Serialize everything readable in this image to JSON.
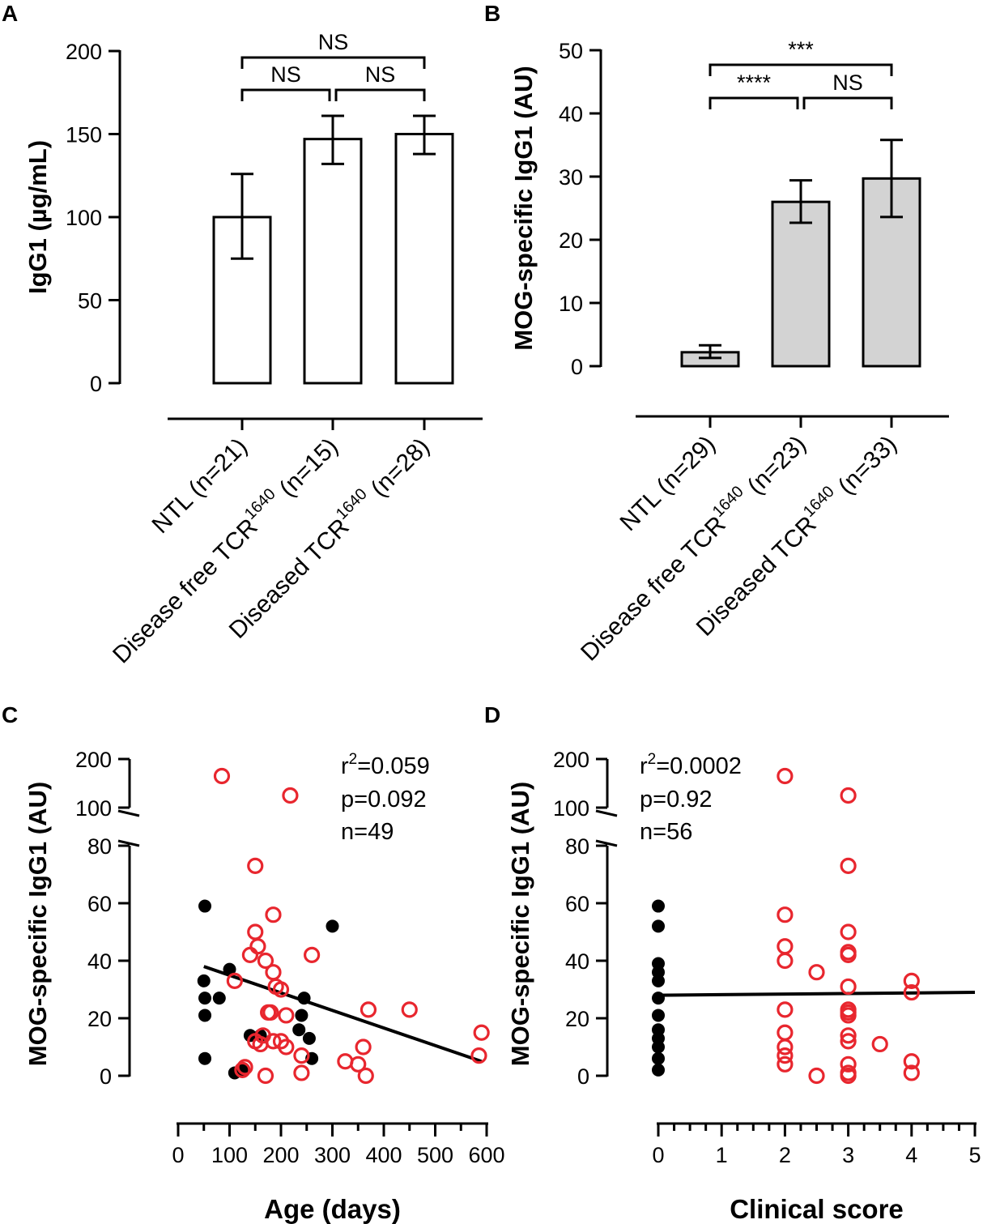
{
  "chart_data": [
    {
      "panel": "A",
      "type": "bar",
      "ylabel": "IgG1 (µg/mL)",
      "ylim": [
        0,
        200
      ],
      "yticks": [
        "0",
        "50",
        "100",
        "150",
        "200"
      ],
      "bar_fill": "#ffffff",
      "categories": [
        {
          "pre": "NTL (n=21)",
          "sup": "",
          "post": ""
        },
        {
          "pre": "Disease free TCR",
          "sup": "1640",
          "post": " (n=15)"
        },
        {
          "pre": "Diseased TCR",
          "sup": "1640",
          "post": " (n=28)"
        }
      ],
      "values": [
        100,
        147,
        150
      ],
      "errors": [
        [
          75,
          126
        ],
        [
          132,
          161
        ],
        [
          138,
          161
        ]
      ],
      "comparisons": [
        {
          "from": 0,
          "to": 1,
          "label": "NS",
          "level": 1
        },
        {
          "from": 1,
          "to": 2,
          "label": "NS",
          "level": 1
        },
        {
          "from": 0,
          "to": 2,
          "label": "NS",
          "level": 2
        }
      ]
    },
    {
      "panel": "B",
      "type": "bar",
      "ylabel": "MOG-specific IgG1 (AU)",
      "ylim": [
        0,
        50
      ],
      "yticks": [
        "0",
        "10",
        "20",
        "30",
        "40",
        "50"
      ],
      "bar_fill": "#d3d3d3",
      "categories": [
        {
          "pre": "NTL (n=29)",
          "sup": "",
          "post": ""
        },
        {
          "pre": "Disease free TCR",
          "sup": "1640",
          "post": " (n=23)"
        },
        {
          "pre": "Diseased TCR",
          "sup": "1640",
          "post": " (n=33)"
        }
      ],
      "values": [
        2.2,
        26,
        29.7
      ],
      "errors": [
        [
          1.3,
          3.3
        ],
        [
          22.7,
          29.4
        ],
        [
          23.6,
          35.8
        ]
      ],
      "comparisons": [
        {
          "from": 0,
          "to": 1,
          "label": "****",
          "level": 1
        },
        {
          "from": 1,
          "to": 2,
          "label": "NS",
          "level": 1
        },
        {
          "from": 0,
          "to": 2,
          "label": "***",
          "level": 2
        }
      ]
    },
    {
      "panel": "C",
      "type": "scatter",
      "xlabel": "Age (days)",
      "ylabel": "MOG-specific IgG1 (AU)",
      "xlim": [
        0,
        600
      ],
      "xticks": [
        "0",
        "100",
        "200",
        "300",
        "400",
        "500",
        "600"
      ],
      "ylim_lower": [
        0,
        80
      ],
      "ylim_upper": [
        100,
        200
      ],
      "yticks_lower": [
        "0",
        "20",
        "40",
        "60",
        "80"
      ],
      "yticks_upper": [
        "100",
        "200"
      ],
      "stats": {
        "r2_prefix": "r",
        "r2_sup": "2",
        "r2_value": "=0.059",
        "p": "p=0.092",
        "n": "n=49"
      },
      "regression": {
        "x": [
          50,
          590
        ],
        "y": [
          38,
          5
        ]
      },
      "series": [
        {
          "name": "black filled",
          "marker": "filled",
          "color": "#000000",
          "points": [
            [
              52,
              59
            ],
            [
              50,
              33
            ],
            [
              52,
              27
            ],
            [
              52,
              21
            ],
            [
              52,
              6
            ],
            [
              100,
              37
            ],
            [
              80,
              27
            ],
            [
              140,
              14
            ],
            [
              160,
              14
            ],
            [
              125,
              2
            ],
            [
              110,
              1
            ],
            [
              300,
              52
            ],
            [
              245,
              27
            ],
            [
              240,
              21
            ],
            [
              235,
              16
            ],
            [
              255,
              13
            ],
            [
              260,
              6
            ]
          ]
        },
        {
          "name": "red open",
          "marker": "open",
          "color": "#e8262e",
          "points": [
            [
              85,
              165
            ],
            [
              218,
              125
            ],
            [
              150,
              73
            ],
            [
              150,
              50
            ],
            [
              155,
              45
            ],
            [
              140,
              42
            ],
            [
              185,
              56
            ],
            [
              170,
              40
            ],
            [
              185,
              36
            ],
            [
              190,
              31
            ],
            [
              200,
              30
            ],
            [
              260,
              42
            ],
            [
              110,
              33
            ],
            [
              180,
              22
            ],
            [
              175,
              22
            ],
            [
              210,
              21
            ],
            [
              165,
              14
            ],
            [
              150,
              12
            ],
            [
              160,
              11
            ],
            [
              185,
              12
            ],
            [
              200,
              12
            ],
            [
              210,
              10
            ],
            [
              130,
              3
            ],
            [
              125,
              2
            ],
            [
              170,
              0
            ],
            [
              240,
              7
            ],
            [
              240,
              1
            ],
            [
              325,
              5
            ],
            [
              350,
              4
            ],
            [
              360,
              10
            ],
            [
              370,
              23
            ],
            [
              365,
              0
            ],
            [
              450,
              23
            ],
            [
              590,
              15
            ],
            [
              585,
              7
            ]
          ]
        }
      ]
    },
    {
      "panel": "D",
      "type": "scatter",
      "xlabel": "Clinical score",
      "ylabel": "MOG-specific IgG1 (AU)",
      "xlim": [
        0,
        5
      ],
      "xticks": [
        "0",
        "1",
        "2",
        "3",
        "4",
        "5"
      ],
      "ylim_lower": [
        0,
        80
      ],
      "ylim_upper": [
        100,
        200
      ],
      "yticks_lower": [
        "0",
        "20",
        "40",
        "60",
        "80"
      ],
      "yticks_upper": [
        "100",
        "200"
      ],
      "stats": {
        "r2_prefix": "r",
        "r2_sup": "2",
        "r2_value": "=0.0002",
        "p": "p=0.92",
        "n": "n=56"
      },
      "regression": {
        "x": [
          0,
          5
        ],
        "y": [
          28,
          29
        ]
      },
      "series": [
        {
          "name": "black filled",
          "marker": "filled",
          "color": "#000000",
          "points": [
            [
              0,
              59
            ],
            [
              0,
              52
            ],
            [
              0,
              39
            ],
            [
              0,
              36
            ],
            [
              0,
              33
            ],
            [
              0,
              27
            ],
            [
              0,
              21
            ],
            [
              0,
              16
            ],
            [
              0,
              13
            ],
            [
              0,
              10
            ],
            [
              0,
              6
            ],
            [
              0,
              2
            ]
          ]
        },
        {
          "name": "red open",
          "marker": "open",
          "color": "#e8262e",
          "points": [
            [
              2,
              165
            ],
            [
              2,
              56
            ],
            [
              2,
              45
            ],
            [
              2,
              40
            ],
            [
              2,
              23
            ],
            [
              2,
              15
            ],
            [
              2,
              10
            ],
            [
              2,
              7
            ],
            [
              2,
              4
            ],
            [
              2.5,
              36
            ],
            [
              2.5,
              0
            ],
            [
              3,
              125
            ],
            [
              3,
              73
            ],
            [
              3,
              50
            ],
            [
              3,
              43
            ],
            [
              3,
              42
            ],
            [
              3,
              31
            ],
            [
              3,
              23
            ],
            [
              3,
              22
            ],
            [
              3,
              21
            ],
            [
              3,
              14
            ],
            [
              3,
              12
            ],
            [
              3,
              4
            ],
            [
              3,
              1
            ],
            [
              3,
              0
            ],
            [
              3.5,
              11
            ],
            [
              4,
              33
            ],
            [
              4,
              29
            ],
            [
              4,
              5
            ],
            [
              4,
              1
            ]
          ]
        }
      ]
    }
  ]
}
